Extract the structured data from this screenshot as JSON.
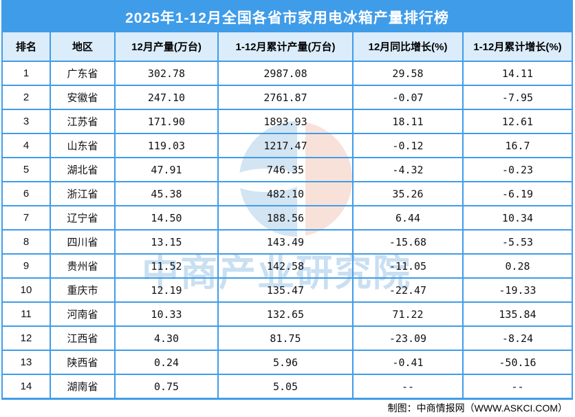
{
  "title": "2025年1-12月全国各省市家用电冰箱产量排行榜",
  "watermark": {
    "text": "中商产业研究院",
    "logo_name": "askci-pie-logo",
    "logo_blue": "#D3E4F2",
    "logo_pink": "#F8E1D9"
  },
  "footer": {
    "credit": "制图：中商情报网（WWW.ASKCI.COM）"
  },
  "colors": {
    "accent_blue": "#3F9CE9",
    "header_bg": "#DBECFA",
    "row_bg": "#FFFFFF",
    "title_text": "#FFFFFF",
    "watermark_text": "#BCD8EF"
  },
  "chart_data": {
    "type": "table",
    "title": "2025年1-12月全国各省市家用电冰箱产量排行榜",
    "columns": [
      "排名",
      "地区",
      "12月产量(万台)",
      "1-12月累计产量(万台)",
      "12月同比增长(%)",
      "1-12月累计增长(%)"
    ],
    "rows": [
      [
        "1",
        "广东省",
        "302.78",
        "2987.08",
        "29.58",
        "14.11"
      ],
      [
        "2",
        "安徽省",
        "247.10",
        "2761.87",
        "-0.07",
        "-7.95"
      ],
      [
        "3",
        "江苏省",
        "171.90",
        "1893.93",
        "18.11",
        "12.61"
      ],
      [
        "4",
        "山东省",
        "119.03",
        "1217.47",
        "-0.12",
        "16.7"
      ],
      [
        "5",
        "湖北省",
        "47.91",
        "746.35",
        "-4.32",
        "-0.23"
      ],
      [
        "6",
        "浙江省",
        "45.38",
        "482.10",
        "35.26",
        "-6.19"
      ],
      [
        "7",
        "辽宁省",
        "14.50",
        "188.56",
        "6.44",
        "10.34"
      ],
      [
        "8",
        "四川省",
        "13.15",
        "143.49",
        "-15.68",
        "-5.53"
      ],
      [
        "9",
        "贵州省",
        "11.52",
        "142.58",
        "-11.05",
        "0.28"
      ],
      [
        "10",
        "重庆市",
        "12.19",
        "135.47",
        "-22.47",
        "-19.33"
      ],
      [
        "11",
        "河南省",
        "10.33",
        "132.65",
        "71.22",
        "135.84"
      ],
      [
        "12",
        "江西省",
        "4.30",
        "81.75",
        "-23.09",
        "-8.24"
      ],
      [
        "13",
        "陕西省",
        "0.24",
        "5.96",
        "-0.41",
        "-50.16"
      ],
      [
        "14",
        "湖南省",
        "0.75",
        "5.05",
        "--",
        "--"
      ]
    ]
  }
}
